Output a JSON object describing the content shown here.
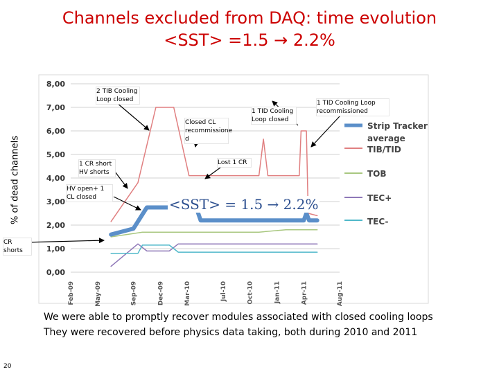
{
  "slide": {
    "title_line1": "Channels excluded from DAQ: time evolution",
    "title_line2": "<SST> =1.5 → 2.2%",
    "ylabel": "% of dead channels",
    "page_number": "20",
    "bottom_line1": "We were able to promptly recover modules associated with closed cooling loops",
    "bottom_line2": "They were recovered before physics data taking, both during 2010 and 2011"
  },
  "annotations": {
    "tib_cooling": "2 TIB Cooling Loop closed",
    "cl_recommission": "Closed CL recommissione d",
    "tid_cooling": "1 TID Cooling Loop closed",
    "tid_recommissioned": "1 TID Cooling Loop recommissioned",
    "lost_cr": "Lost 1 CR",
    "cr_short": "1 CR short HV shorts",
    "hv_open": "HV open+ 1 CL closed",
    "cr_shorts": "CR shorts",
    "sst_range": "<SST>  = 1.5 → 2.2%"
  },
  "colors": {
    "title": "#cc0000",
    "strip_tracker": "#5b8fc9",
    "tib_tid": "#e07f80",
    "tob": "#a8c77f",
    "tec_plus": "#8f78b8",
    "tec_minus": "#4fb8c9",
    "grid": "#d0d0d0"
  },
  "chart_data": {
    "type": "line",
    "title": "Channels excluded from DAQ: time evolution",
    "xlabel": "",
    "ylabel": "% of dead channels",
    "ylim": [
      0,
      8
    ],
    "grid": true,
    "legend_position": "right",
    "y_ticks": [
      "0,00",
      "1,00",
      "2,00",
      "3,00",
      "4,00",
      "5,00",
      "6,00",
      "7,00",
      "8,00"
    ],
    "x_ticks": [
      "Feb-09",
      "May-09",
      "Sep-09",
      "Dec-09",
      "Mar-10",
      "Jul-10",
      "Oct-10",
      "Jan-11",
      "Apr-11",
      "Aug-11"
    ],
    "x_tick_months": [
      0,
      3,
      7,
      10,
      13,
      17,
      20,
      23,
      26,
      30
    ],
    "series": [
      {
        "name": "Strip Tracker average",
        "color": "#5b8fc9",
        "width": 6,
        "points": [
          [
            4.5,
            1.6
          ],
          [
            7,
            1.85
          ],
          [
            8.5,
            2.75
          ],
          [
            14,
            2.75
          ],
          [
            14.5,
            2.2
          ],
          [
            26,
            2.2
          ],
          [
            26.3,
            2.5
          ],
          [
            26.6,
            2.2
          ],
          [
            27.5,
            2.2
          ]
        ]
      },
      {
        "name": "TIB/TID",
        "color": "#e07f80",
        "width": 1.5,
        "points": [
          [
            4.5,
            2.15
          ],
          [
            7.5,
            3.8
          ],
          [
            9.5,
            7.0
          ],
          [
            11.5,
            7.0
          ],
          [
            13.2,
            4.1
          ],
          [
            18,
            4.1
          ],
          [
            21,
            4.1
          ],
          [
            21.5,
            5.65
          ],
          [
            22,
            4.1
          ],
          [
            25.5,
            4.1
          ],
          [
            25.7,
            6.0
          ],
          [
            26.3,
            6.0
          ],
          [
            26.5,
            2.5
          ],
          [
            27.5,
            2.4
          ]
        ]
      },
      {
        "name": "TOB",
        "color": "#a8c77f",
        "width": 1.5,
        "points": [
          [
            4.5,
            1.5
          ],
          [
            8,
            1.7
          ],
          [
            18,
            1.7
          ],
          [
            21,
            1.7
          ],
          [
            24,
            1.8
          ],
          [
            27.5,
            1.8
          ]
        ]
      },
      {
        "name": "TEC+",
        "color": "#8f78b8",
        "width": 1.5,
        "points": [
          [
            4.5,
            0.25
          ],
          [
            7.5,
            1.2
          ],
          [
            8.5,
            0.9
          ],
          [
            11,
            0.9
          ],
          [
            12,
            1.2
          ],
          [
            27.5,
            1.2
          ]
        ]
      },
      {
        "name": "TEC-",
        "color": "#4fb8c9",
        "width": 1.5,
        "points": [
          [
            4.5,
            0.8
          ],
          [
            7.5,
            0.8
          ],
          [
            8,
            1.15
          ],
          [
            11,
            1.15
          ],
          [
            12,
            0.85
          ],
          [
            27.5,
            0.85
          ]
        ]
      }
    ],
    "legend": [
      "Strip Tracker average",
      "TIB/TID",
      "TOB",
      "TEC+",
      "TEC-"
    ]
  }
}
